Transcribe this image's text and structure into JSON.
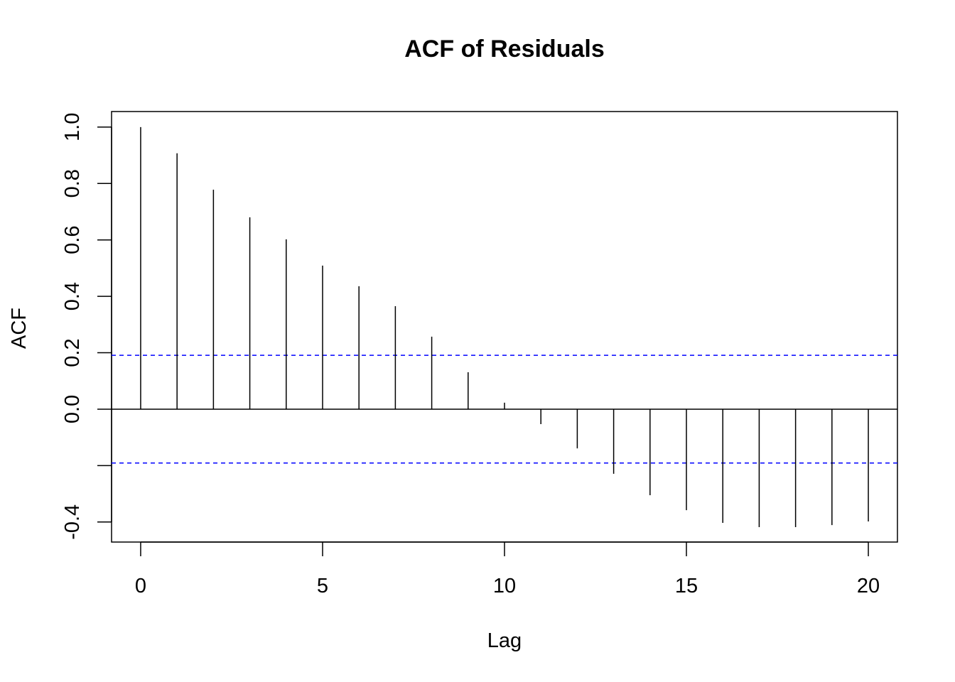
{
  "chart_data": {
    "type": "bar",
    "subtype": "acf-stem",
    "title": "ACF of Residuals",
    "xlabel": "Lag",
    "ylabel": "ACF",
    "xlim": [
      -0.8,
      20.8
    ],
    "ylim": [
      -0.471,
      1.055
    ],
    "x_ticks": [
      0,
      5,
      10,
      15,
      20
    ],
    "x_tick_labels": [
      "0",
      "5",
      "10",
      "15",
      "20"
    ],
    "y_ticks": [
      -0.4,
      -0.2,
      0.0,
      0.2,
      0.4,
      0.6,
      0.8,
      1.0
    ],
    "y_tick_labels": [
      "-0.4",
      "",
      "0.0",
      "0.2",
      "0.4",
      "0.6",
      "0.8",
      "1.0"
    ],
    "lags": [
      0,
      1,
      2,
      3,
      4,
      5,
      6,
      7,
      8,
      9,
      10,
      11,
      12,
      13,
      14,
      15,
      16,
      17,
      18,
      19,
      20
    ],
    "values": [
      1.0,
      0.907,
      0.778,
      0.68,
      0.602,
      0.509,
      0.436,
      0.365,
      0.257,
      0.131,
      0.023,
      -0.053,
      -0.139,
      -0.229,
      -0.305,
      -0.358,
      -0.403,
      -0.418,
      -0.418,
      -0.411,
      -0.398
    ],
    "confidence_bound": 0.191,
    "colors": {
      "stem": "#000000",
      "confidence": "#0000ff"
    },
    "grid": false
  }
}
